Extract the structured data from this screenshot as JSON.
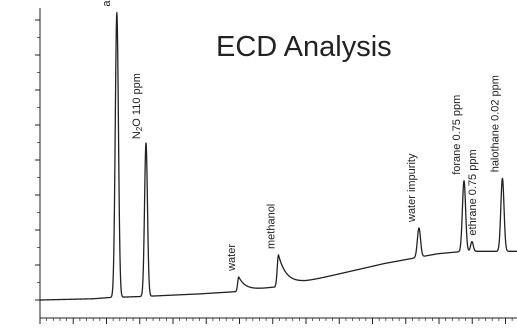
{
  "chart_data": {
    "type": "line",
    "title": "ECD Analysis",
    "xlabel": "",
    "ylabel": "",
    "grid": false,
    "x_range": [
      0,
      18
    ],
    "y_range": [
      0,
      12
    ],
    "baseline": [
      [
        0.0,
        0.0
      ],
      [
        2.0,
        0.05
      ],
      [
        2.6,
        0.1
      ],
      [
        4.0,
        0.15
      ],
      [
        6.0,
        0.25
      ],
      [
        7.5,
        0.35
      ],
      [
        9.0,
        0.55
      ],
      [
        10.0,
        0.75
      ],
      [
        11.0,
        1.0
      ],
      [
        12.0,
        1.25
      ],
      [
        13.0,
        1.5
      ],
      [
        14.0,
        1.7
      ],
      [
        15.0,
        1.9
      ],
      [
        16.0,
        2.0
      ],
      [
        17.0,
        2.0
      ],
      [
        18.0,
        2.0
      ]
    ],
    "series": [
      {
        "values": [
          {
            "x": 2.9,
            "y": 11.7
          },
          {
            "x": 4.0,
            "y": 6.3
          },
          {
            "x": 7.5,
            "y": 0.6
          },
          {
            "x": 9.0,
            "y": 1.3
          },
          {
            "x": 14.3,
            "y": 1.2
          },
          {
            "x": 16.0,
            "y": 2.9
          },
          {
            "x": 16.3,
            "y": 0.4
          },
          {
            "x": 17.45,
            "y": 3.0
          }
        ]
      }
    ],
    "peaks": [
      {
        "label": "air",
        "x": 2.9
      },
      {
        "label_main": "N",
        "label_sub": "2",
        "label_rest": "O 110 ppm",
        "x": 4.0
      },
      {
        "label": "water",
        "x": 7.5
      },
      {
        "label": "methanol",
        "x": 9.0
      },
      {
        "label": "water impurity",
        "x": 14.3
      },
      {
        "label": "forane 0.75 ppm",
        "x": 16.0
      },
      {
        "label": "ethrane 0.75 ppm",
        "x": 16.3
      },
      {
        "label": "halothane 0.02 ppm",
        "x": 17.45
      }
    ]
  }
}
